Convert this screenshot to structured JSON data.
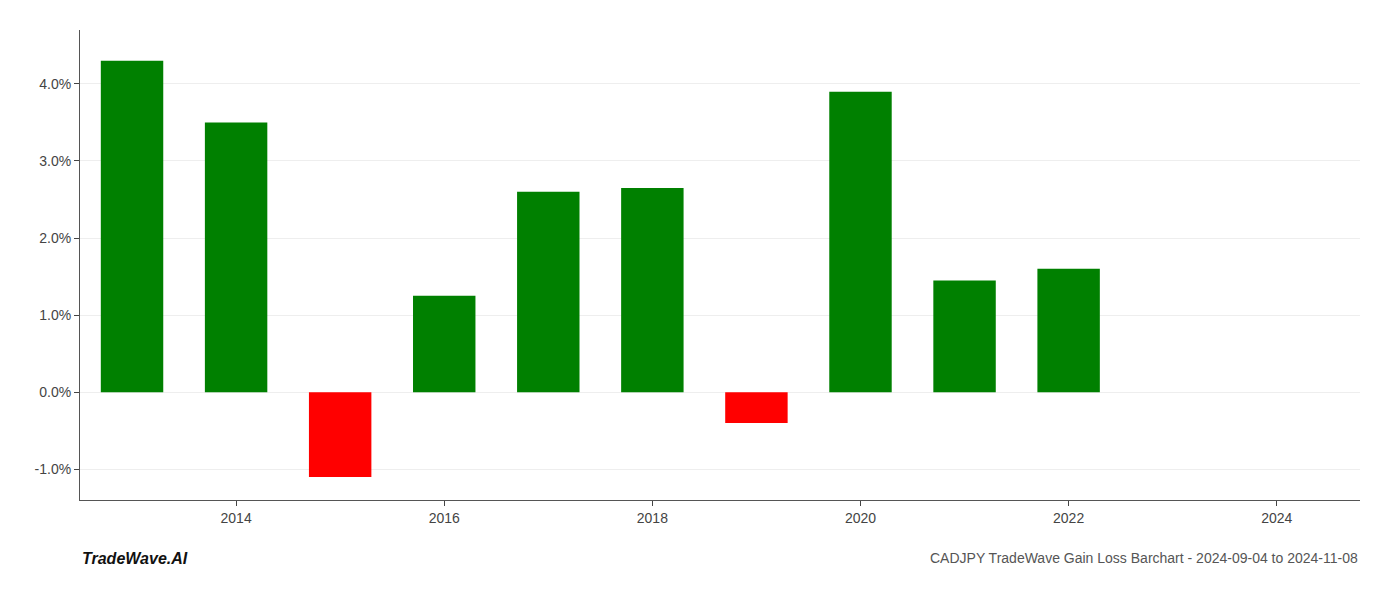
{
  "chart_data": {
    "type": "bar",
    "title": "CADJPY TradeWave Gain Loss Barchart - 2024-09-04 to 2024-11-08",
    "annotations": [
      "TradeWave.AI"
    ],
    "x": [
      2013,
      2014,
      2015,
      2016,
      2017,
      2018,
      2019,
      2020,
      2021,
      2022
    ],
    "values": [
      0.043,
      0.035,
      -0.011,
      0.0125,
      0.026,
      0.0265,
      -0.004,
      0.039,
      0.0145,
      0.016
    ],
    "colors": [
      "#008000",
      "#008000",
      "#ff0000",
      "#008000",
      "#008000",
      "#008000",
      "#ff0000",
      "#008000",
      "#008000",
      "#008000"
    ],
    "xlim": [
      2012.5,
      2024.8
    ],
    "xticks": [
      2014,
      2016,
      2018,
      2020,
      2022,
      2024
    ],
    "ylim": [
      -0.014,
      0.047
    ],
    "yticks": [
      {
        "value": -0.01,
        "label": "-1.0%"
      },
      {
        "value": 0.0,
        "label": "0.0%"
      },
      {
        "value": 0.01,
        "label": "1.0%"
      },
      {
        "value": 0.02,
        "label": "2.0%"
      },
      {
        "value": 0.03,
        "label": "3.0%"
      },
      {
        "value": 0.04,
        "label": "4.0%"
      }
    ],
    "grid": true
  }
}
